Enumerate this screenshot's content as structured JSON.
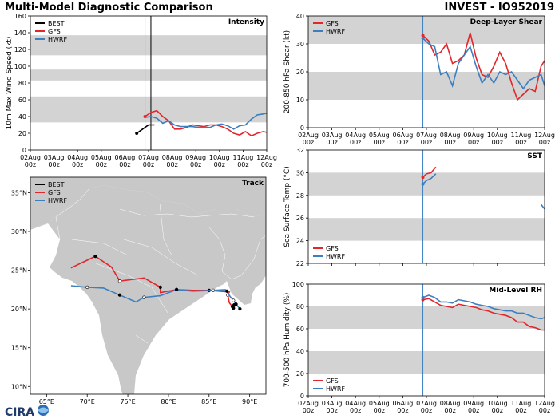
{
  "header": {
    "title_left": "Multi-Model Diagnostic Comparison",
    "title_right": "INVEST - IO952019"
  },
  "logo": {
    "text": "CIRA"
  },
  "colors": {
    "BEST": "#000000",
    "GFS": "#e3262b",
    "HWRF": "#3c7fc0",
    "band": "#d3d3d3",
    "land": "#c8c8c8",
    "water": "#ffffff"
  },
  "time_axis": {
    "labels": [
      "02Aug",
      "03Aug",
      "04Aug",
      "05Aug",
      "06Aug",
      "07Aug",
      "08Aug",
      "09Aug",
      "10Aug",
      "11Aug",
      "12Aug"
    ],
    "sublabel": "00z",
    "init_day": 4.85
  },
  "chart_data": [
    {
      "id": "intensity",
      "type": "line",
      "title": "Intensity",
      "ylabel": "10m Max Wind Speed (kt)",
      "ylim": [
        0,
        160
      ],
      "yticks": [
        0,
        20,
        40,
        60,
        80,
        100,
        120,
        140,
        160
      ],
      "bands": [
        [
          33,
          64
        ],
        [
          83,
          96
        ],
        [
          113,
          137
        ]
      ],
      "init_lines": [
        4.85,
        5.1
      ],
      "legend": [
        "BEST",
        "GFS",
        "HWRF"
      ],
      "series": [
        {
          "name": "BEST",
          "x": [
            4.5,
            4.75,
            5.0,
            5.25
          ],
          "y": [
            20,
            25,
            30,
            30
          ]
        },
        {
          "name": "GFS",
          "x": [
            4.85,
            5.1,
            5.35,
            5.6,
            5.85,
            6.1,
            6.35,
            6.6,
            6.85,
            7.1,
            7.35,
            7.6,
            7.85,
            8.1,
            8.35,
            8.6,
            8.85,
            9.1,
            9.35,
            9.6,
            9.85,
            10.0
          ],
          "y": [
            40,
            45,
            47,
            40,
            35,
            25,
            25,
            27,
            30,
            29,
            28,
            30,
            30,
            28,
            25,
            20,
            18,
            22,
            17,
            20,
            22,
            21
          ]
        },
        {
          "name": "HWRF",
          "x": [
            4.85,
            5.1,
            5.35,
            5.6,
            5.85,
            6.1,
            6.35,
            6.6,
            6.85,
            7.1,
            7.35,
            7.6,
            7.85,
            8.1,
            8.35,
            8.6,
            8.85,
            9.1,
            9.35,
            9.6,
            9.85,
            10.0
          ],
          "y": [
            39,
            40,
            38,
            32,
            35,
            30,
            28,
            28,
            28,
            27,
            27,
            27,
            30,
            31,
            29,
            25,
            29,
            30,
            37,
            42,
            43,
            44
          ]
        }
      ]
    },
    {
      "id": "shear",
      "type": "line",
      "title": "Deep-Layer Shear",
      "ylabel": "200-850 hPa Shear (kt)",
      "ylim": [
        0,
        40
      ],
      "yticks": [
        0,
        10,
        20,
        30,
        40
      ],
      "bands": [
        [
          10,
          20
        ],
        [
          30,
          40
        ]
      ],
      "init_lines": [
        4.85
      ],
      "legend": [
        "GFS",
        "HWRF"
      ],
      "series": [
        {
          "name": "GFS",
          "x": [
            4.85,
            5.1,
            5.35,
            5.6,
            5.85,
            6.1,
            6.35,
            6.6,
            6.85,
            7.1,
            7.35,
            7.6,
            7.85,
            8.1,
            8.35,
            8.6,
            8.85,
            9.1,
            9.35,
            9.6,
            9.85,
            10.0
          ],
          "y": [
            33,
            31,
            26,
            27,
            30,
            23,
            24,
            26,
            34,
            25,
            19,
            18,
            22,
            27,
            23,
            16,
            10,
            12,
            14,
            13,
            22,
            24
          ]
        },
        {
          "name": "HWRF",
          "x": [
            4.85,
            5.1,
            5.35,
            5.6,
            5.85,
            6.1,
            6.35,
            6.6,
            6.85,
            7.1,
            7.35,
            7.6,
            7.85,
            8.1,
            8.35,
            8.6,
            8.85,
            9.1,
            9.35,
            9.6,
            9.85,
            10.0
          ],
          "y": [
            32,
            30,
            29,
            19,
            20,
            15,
            23,
            26,
            29,
            22,
            16,
            19,
            16,
            20,
            19,
            20,
            17,
            14,
            17,
            18,
            19,
            15
          ]
        }
      ]
    },
    {
      "id": "sst",
      "type": "line",
      "title": "SST",
      "ylabel": "Sea Surface Temp (°C)",
      "ylim": [
        22,
        32
      ],
      "yticks": [
        22,
        24,
        26,
        28,
        30,
        32
      ],
      "bands": [
        [
          24,
          26
        ],
        [
          28,
          30
        ]
      ],
      "init_lines": [
        4.85
      ],
      "legend": [
        "GFS",
        "HWRF"
      ],
      "series": [
        {
          "name": "GFS",
          "x": [
            4.85,
            5.0,
            5.2,
            5.4
          ],
          "y": [
            29.6,
            29.9,
            30.0,
            30.5
          ]
        },
        {
          "name": "HWRF",
          "x": [
            4.85,
            5.0,
            5.2,
            5.4
          ],
          "y": [
            29.0,
            29.3,
            29.5,
            29.9
          ]
        },
        {
          "name": "HWRF",
          "x": [
            9.85,
            10.0
          ],
          "y": [
            27.2,
            26.8
          ]
        }
      ]
    },
    {
      "id": "rh",
      "type": "line",
      "title": "Mid-Level RH",
      "ylabel": "700-500 hPa Humidity (%)",
      "ylim": [
        0,
        100
      ],
      "yticks": [
        0,
        20,
        40,
        60,
        80,
        100
      ],
      "bands": [
        [
          20,
          40
        ],
        [
          60,
          80
        ]
      ],
      "init_lines": [
        4.85
      ],
      "legend": [
        "GFS",
        "HWRF"
      ],
      "series": [
        {
          "name": "GFS",
          "x": [
            4.85,
            5.1,
            5.35,
            5.6,
            5.85,
            6.1,
            6.35,
            6.6,
            6.85,
            7.1,
            7.35,
            7.6,
            7.85,
            8.1,
            8.35,
            8.6,
            8.85,
            9.1,
            9.35,
            9.6,
            9.85,
            10.0
          ],
          "y": [
            86,
            87,
            84,
            81,
            80,
            79,
            82,
            81,
            80,
            79,
            77,
            76,
            74,
            73,
            72,
            70,
            66,
            66,
            62,
            61,
            59,
            59
          ]
        },
        {
          "name": "HWRF",
          "x": [
            4.85,
            5.1,
            5.35,
            5.6,
            5.85,
            6.1,
            6.35,
            6.6,
            6.85,
            7.1,
            7.35,
            7.6,
            7.85,
            8.1,
            8.35,
            8.6,
            8.85,
            9.1,
            9.35,
            9.6,
            9.85,
            10.0
          ],
          "y": [
            88,
            90,
            88,
            84,
            84,
            83,
            86,
            85,
            84,
            82,
            81,
            80,
            78,
            77,
            76,
            76,
            74,
            74,
            72,
            70,
            69,
            70
          ]
        }
      ]
    },
    {
      "id": "track",
      "type": "map",
      "title": "Track",
      "legend": [
        "BEST",
        "GFS",
        "HWRF"
      ],
      "lon_range": [
        63,
        92
      ],
      "lat_range": [
        9,
        37
      ],
      "xticks": [
        65,
        70,
        75,
        80,
        85,
        90
      ],
      "xtick_labels": [
        "65°E",
        "70°E",
        "75°E",
        "80°E",
        "85°E",
        "90°E"
      ],
      "yticks": [
        10,
        15,
        20,
        25,
        30,
        35
      ],
      "ytick_labels": [
        "10°N",
        "15°N",
        "20°N",
        "25°N",
        "30°N",
        "35°N"
      ],
      "series": [
        {
          "name": "GFS",
          "lon": [
            88.0,
            87.5,
            87.3,
            87.5,
            85.0,
            83.0,
            81.0,
            79.0,
            79.0,
            77.0,
            74.0,
            73.0,
            71.0,
            68.0
          ],
          "lat": [
            20.1,
            20.8,
            21.8,
            22.2,
            22.4,
            22.4,
            22.5,
            22.1,
            22.8,
            24.0,
            23.6,
            25.4,
            26.8,
            25.3
          ]
        },
        {
          "name": "HWRF",
          "lon": [
            88.8,
            88.4,
            88.0,
            87.6,
            87.2,
            87.0,
            85.5,
            83.0,
            81.0,
            79.0,
            77.0,
            76.0,
            74.0,
            72.0,
            70.0,
            68.0
          ],
          "lat": [
            20.0,
            20.5,
            21.1,
            21.6,
            22.3,
            22.5,
            22.4,
            22.3,
            22.5,
            21.7,
            21.5,
            20.9,
            21.8,
            22.7,
            22.8,
            23.0
          ]
        },
        {
          "name": "BEST",
          "lon": [
            87.9,
            88.1,
            88.3
          ],
          "lat": [
            20.3,
            20.5,
            20.6
          ]
        }
      ]
    }
  ]
}
